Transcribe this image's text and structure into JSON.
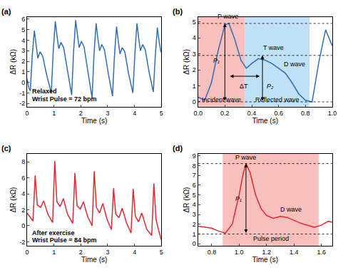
{
  "chart_data": [
    {
      "type": "line",
      "panel": "(a)",
      "x_label": "Time (s)",
      "y_label": "ΔR (kΩ)",
      "color": "#2f6db5",
      "grid": false,
      "notes": [
        {
          "text": "Relaxed"
        },
        {
          "text": "Wrist Pulse = 72 bpm"
        }
      ],
      "x": [
        0,
        0.06,
        0.12,
        0.19,
        0.27,
        0.34,
        0.4,
        0.48,
        0.58,
        0.72,
        0.84,
        0.9,
        0.97,
        1.05,
        1.12,
        1.18,
        1.26,
        1.36,
        1.5,
        1.6,
        1.66,
        1.73,
        1.81,
        1.88,
        1.94,
        2.02,
        2.12,
        2.26,
        2.36,
        2.42,
        2.49,
        2.57,
        2.64,
        2.7,
        2.78,
        2.88,
        3.02,
        3.12,
        3.18,
        3.25,
        3.33,
        3.4,
        3.46,
        3.54,
        3.64,
        3.78,
        3.88,
        3.94,
        4.01,
        4.09,
        4.16,
        4.22,
        4.3,
        4.4,
        4.54,
        4.64,
        4.7,
        4.77,
        4.85,
        4.92,
        4.98
      ],
      "values": [
        0.3,
        -0.5,
        -0.8,
        2.5,
        4.9,
        3.4,
        2.3,
        2.9,
        2.5,
        0.8,
        -0.3,
        -1.0,
        2.8,
        5.8,
        4.3,
        3.2,
        3.8,
        3.3,
        1.2,
        -0.2,
        -1.2,
        2.9,
        5.9,
        4.4,
        3.3,
        3.9,
        3.4,
        1.1,
        -0.4,
        -1.5,
        2.6,
        5.6,
        4.1,
        3.0,
        3.6,
        3.1,
        0.9,
        -0.5,
        -1.3,
        2.4,
        5.3,
        3.8,
        2.7,
        3.3,
        2.9,
        0.8,
        -0.4,
        -1.0,
        2.6,
        5.6,
        4.1,
        3.0,
        3.6,
        3.1,
        1.0,
        -0.3,
        -0.9,
        2.4,
        5.2,
        3.8,
        2.9
      ],
      "xlim": [
        0,
        5
      ],
      "xticks": [
        0,
        1,
        2,
        3,
        4,
        5
      ],
      "ylim": [
        -2.3,
        6.2
      ],
      "yticks": [
        -2,
        -1,
        0,
        1,
        2,
        3,
        4,
        5,
        6
      ]
    },
    {
      "type": "line",
      "panel": "(b)",
      "x_label": "Time (s)",
      "y_label": "ΔR (kΩ)",
      "color": "#2f6db5",
      "grid": false,
      "notes": [
        {
          "text": "P wave"
        },
        {
          "text": "T wave"
        },
        {
          "text": "D wave"
        },
        {
          "text": "P₁"
        },
        {
          "text": "P₂"
        },
        {
          "text": "ΔT"
        }
      ],
      "regions": [
        {
          "x0": 0,
          "x1": 0.35,
          "color": "#f6aaa6",
          "label": "Incident wave"
        },
        {
          "x0": 0.35,
          "x1": 0.83,
          "color": "#a9d6f2",
          "label": "Reflected wave"
        }
      ],
      "hlines": [
        4.9,
        2.9,
        0
      ],
      "x": [
        0,
        0.05,
        0.1,
        0.15,
        0.2,
        0.23,
        0.27,
        0.32,
        0.36,
        0.4,
        0.45,
        0.5,
        0.55,
        0.6,
        0.65,
        0.7,
        0.75,
        0.8,
        0.85,
        0.9,
        0.95,
        1.0
      ],
      "values": [
        0.3,
        0.1,
        1.2,
        3.2,
        4.8,
        4.9,
        4.0,
        2.6,
        2.1,
        2.4,
        2.7,
        2.6,
        2.4,
        2.1,
        1.8,
        1.2,
        0.5,
        0.1,
        0.0,
        2.5,
        4.5,
        3.5
      ],
      "xlim": [
        0,
        1
      ],
      "xticks": [
        {
          "value": 0,
          "label": "0.0"
        },
        0.2,
        0.4,
        0.6,
        0.8,
        {
          "value": 1,
          "label": "1.0"
        }
      ],
      "ylim": [
        -0.3,
        5.3
      ],
      "yticks": [
        0,
        1,
        2,
        3,
        4,
        5
      ]
    },
    {
      "type": "line",
      "panel": "(c)",
      "x_label": "Time (s)",
      "y_label": "ΔR (kΩ)",
      "color": "#e0282e",
      "grid": false,
      "notes": [
        {
          "text": "After exercise"
        },
        {
          "text": "Wrist Pulse = 84 bpm"
        }
      ],
      "x": [
        0,
        0.12,
        0.22,
        0.3,
        0.38,
        0.5,
        0.62,
        0.78,
        0.95,
        1.03,
        1.11,
        1.23,
        1.35,
        1.5,
        1.7,
        1.78,
        1.86,
        1.98,
        2.1,
        2.25,
        2.42,
        2.5,
        2.58,
        2.7,
        2.82,
        2.98,
        3.14,
        3.22,
        3.3,
        3.42,
        3.54,
        3.7,
        3.87,
        3.95,
        4.03,
        4.15,
        4.27,
        4.45,
        4.64,
        4.72,
        4.8,
        4.9,
        5.0
      ],
      "values": [
        1.6,
        1.0,
        0.6,
        6.3,
        2.6,
        2.3,
        3.1,
        1.4,
        0.4,
        8.1,
        3.0,
        2.4,
        3.4,
        1.5,
        0.3,
        6.6,
        2.5,
        2.1,
        3.0,
        1.2,
        0.0,
        6.8,
        2.3,
        1.6,
        2.8,
        0.8,
        -0.5,
        4.7,
        1.5,
        1.0,
        2.2,
        0.4,
        -0.9,
        4.6,
        1.2,
        0.5,
        1.6,
        -0.4,
        -1.2,
        5.3,
        0.8,
        -0.6,
        -1.8
      ],
      "xlim": [
        0,
        5
      ],
      "xticks": [
        0,
        1,
        2,
        3,
        4,
        5
      ],
      "ylim": [
        -2.5,
        9
      ],
      "yticks": [
        -2,
        0,
        2,
        4,
        6,
        8
      ]
    },
    {
      "type": "line",
      "panel": "(d)",
      "x_label": "Time (s)",
      "y_label": "ΔR (kΩ)",
      "color": "#e0282e",
      "grid": false,
      "notes": [
        {
          "text": "P wave"
        },
        {
          "text": "D wave"
        },
        {
          "text": "P₁"
        }
      ],
      "regions": [
        {
          "x0": 0.88,
          "x1": 1.58,
          "color": "#f6aaa6",
          "label": "Pulse period"
        }
      ],
      "hlines": [
        8.2,
        1.0
      ],
      "x": [
        0.7,
        0.75,
        0.8,
        0.85,
        0.9,
        0.95,
        1.0,
        1.03,
        1.05,
        1.08,
        1.12,
        1.16,
        1.2,
        1.25,
        1.3,
        1.35,
        1.4,
        1.45,
        1.5,
        1.55,
        1.6,
        1.65,
        1.68
      ],
      "values": [
        1.8,
        1.7,
        1.6,
        1.3,
        1.1,
        2.0,
        5.0,
        7.2,
        8.2,
        7.3,
        5.0,
        3.6,
        2.9,
        2.6,
        2.8,
        2.7,
        2.4,
        2.1,
        1.9,
        1.7,
        1.9,
        2.3,
        2.2
      ],
      "xlim": [
        0.7,
        1.68
      ],
      "xticks": [
        0.8,
        {
          "value": 1,
          "label": "1.0"
        },
        1.2,
        1.4,
        1.6
      ],
      "ylim": [
        -0.2,
        9.2
      ],
      "yticks": [
        0,
        1,
        2,
        3,
        4,
        5,
        6,
        7,
        8,
        9
      ]
    }
  ]
}
